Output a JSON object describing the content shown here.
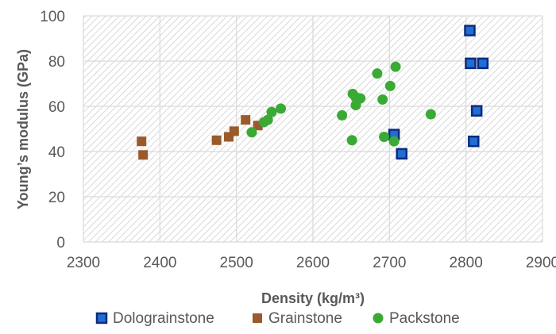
{
  "chart_data": {
    "type": "scatter",
    "xlabel": "Density (kg/m³)",
    "ylabel": "Young’s modulus (GPa)",
    "xlim": [
      2300,
      2900
    ],
    "ylim": [
      0,
      100
    ],
    "xticks": [
      "2300",
      "2400",
      "2500",
      "2600",
      "2700",
      "2800",
      "2900"
    ],
    "yticks": [
      "0",
      "20",
      "40",
      "60",
      "80",
      "100"
    ],
    "grid": true,
    "legend_position": "bottom",
    "series": [
      {
        "name": "Dolograinstone",
        "color": "#1f6fd1",
        "border": "#0d2a80",
        "marker": "square",
        "points": [
          [
            2805,
            93.5
          ],
          [
            2806,
            79
          ],
          [
            2822,
            79
          ],
          [
            2814,
            58
          ],
          [
            2810,
            44.5
          ],
          [
            2706,
            47.5
          ],
          [
            2716,
            39
          ]
        ]
      },
      {
        "name": "Grainstone",
        "color": "#9a5a2a",
        "marker": "square",
        "points": [
          [
            2376,
            44.5
          ],
          [
            2378,
            38.5
          ],
          [
            2474,
            45
          ],
          [
            2490,
            46.5
          ],
          [
            2497,
            49
          ],
          [
            2512,
            54
          ],
          [
            2528,
            51.5
          ]
        ]
      },
      {
        "name": "Packstone",
        "color": "#3aaa35",
        "marker": "circle",
        "points": [
          [
            2520,
            48.5
          ],
          [
            2536,
            53
          ],
          [
            2541,
            54
          ],
          [
            2546,
            57.5
          ],
          [
            2558,
            59
          ],
          [
            2638,
            56
          ],
          [
            2651,
            45
          ],
          [
            2652,
            65.5
          ],
          [
            2656,
            64
          ],
          [
            2656,
            60.5
          ],
          [
            2662,
            63.5
          ],
          [
            2684,
            74.5
          ],
          [
            2691,
            63
          ],
          [
            2693,
            46.5
          ],
          [
            2701,
            69
          ],
          [
            2708,
            77.5
          ],
          [
            2706,
            44.5
          ],
          [
            2754,
            56.5
          ]
        ]
      }
    ]
  }
}
